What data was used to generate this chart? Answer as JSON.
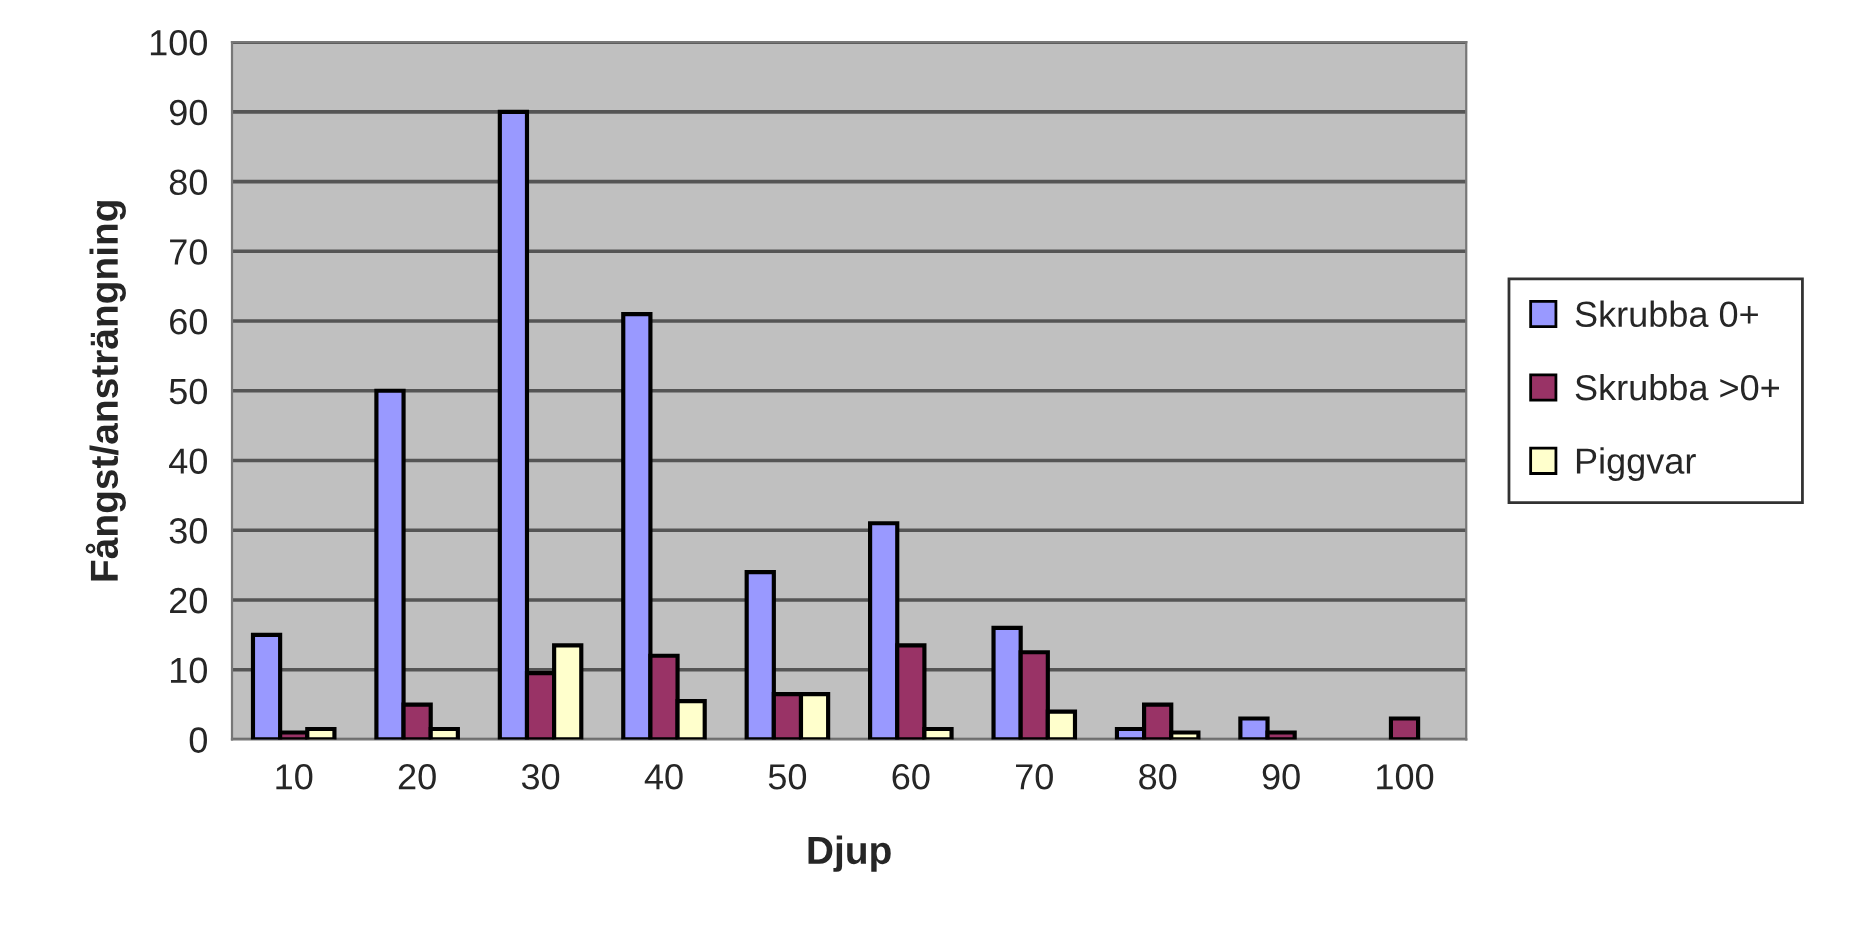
{
  "chart_data": {
    "type": "bar",
    "xlabel": "Djup",
    "ylabel": "Fångst/ansträngning",
    "categories": [
      "10",
      "20",
      "30",
      "40",
      "50",
      "60",
      "70",
      "80",
      "90",
      "100"
    ],
    "series": [
      {
        "name": "Skrubba 0+",
        "color": "#9999ff",
        "values": [
          15,
          50,
          90,
          61,
          24,
          31,
          16,
          1.5,
          3,
          null
        ]
      },
      {
        "name": "Skrubba >0+",
        "color": "#993366",
        "values": [
          1,
          5,
          9.5,
          12,
          6.5,
          13.5,
          12.5,
          5,
          1,
          3
        ]
      },
      {
        "name": "Piggvar",
        "color": "#ffffcc",
        "values": [
          1.5,
          1.5,
          13.5,
          5.5,
          6.5,
          1.5,
          4,
          1,
          null,
          null
        ]
      }
    ],
    "ylim": [
      0,
      100
    ],
    "yticks": [
      0,
      10,
      20,
      30,
      40,
      50,
      60,
      70,
      80,
      90,
      100
    ],
    "grid": "y",
    "legend": "right"
  }
}
